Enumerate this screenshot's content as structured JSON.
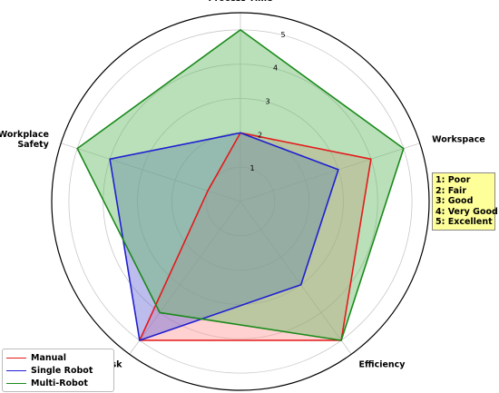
{
  "chart_data": {
    "type": "radar",
    "categories": [
      "Process Time",
      "Workspace",
      "Efficiency",
      "Collision Risk",
      "Workplace Safety"
    ],
    "category_labels": [
      {
        "lines": [
          "Process Time"
        ]
      },
      {
        "lines": [
          "Workspace"
        ]
      },
      {
        "lines": [
          "Efficiency"
        ]
      },
      {
        "lines": [
          "Collision Risk"
        ]
      },
      {
        "lines": [
          "Workplace",
          "Safety"
        ]
      }
    ],
    "rlim": [
      0,
      5.5
    ],
    "rticks": [
      1,
      2,
      3,
      4,
      5
    ],
    "rtick_labels": [
      "1",
      "2",
      "3",
      "4",
      "5"
    ],
    "grid": true,
    "legend_position": "bottom-left",
    "series": [
      {
        "name": "Manual",
        "values": [
          2,
          4,
          5,
          5,
          1
        ],
        "color": "#e41a1c",
        "fill": "#ff9999"
      },
      {
        "name": "Single Robot",
        "values": [
          2,
          3,
          3,
          5,
          4
        ],
        "color": "#1f1fd0",
        "fill": "#6a6ad8"
      },
      {
        "name": "Multi-Robot",
        "values": [
          5,
          5,
          5,
          4,
          5
        ],
        "color": "#1a8a1a",
        "fill": "#66bb66"
      }
    ],
    "scale_legend": [
      "1: Poor",
      "2: Fair",
      "3: Good",
      "4: Very Good",
      "5: Excellent"
    ],
    "scale_legend_color": "#ffff99"
  }
}
